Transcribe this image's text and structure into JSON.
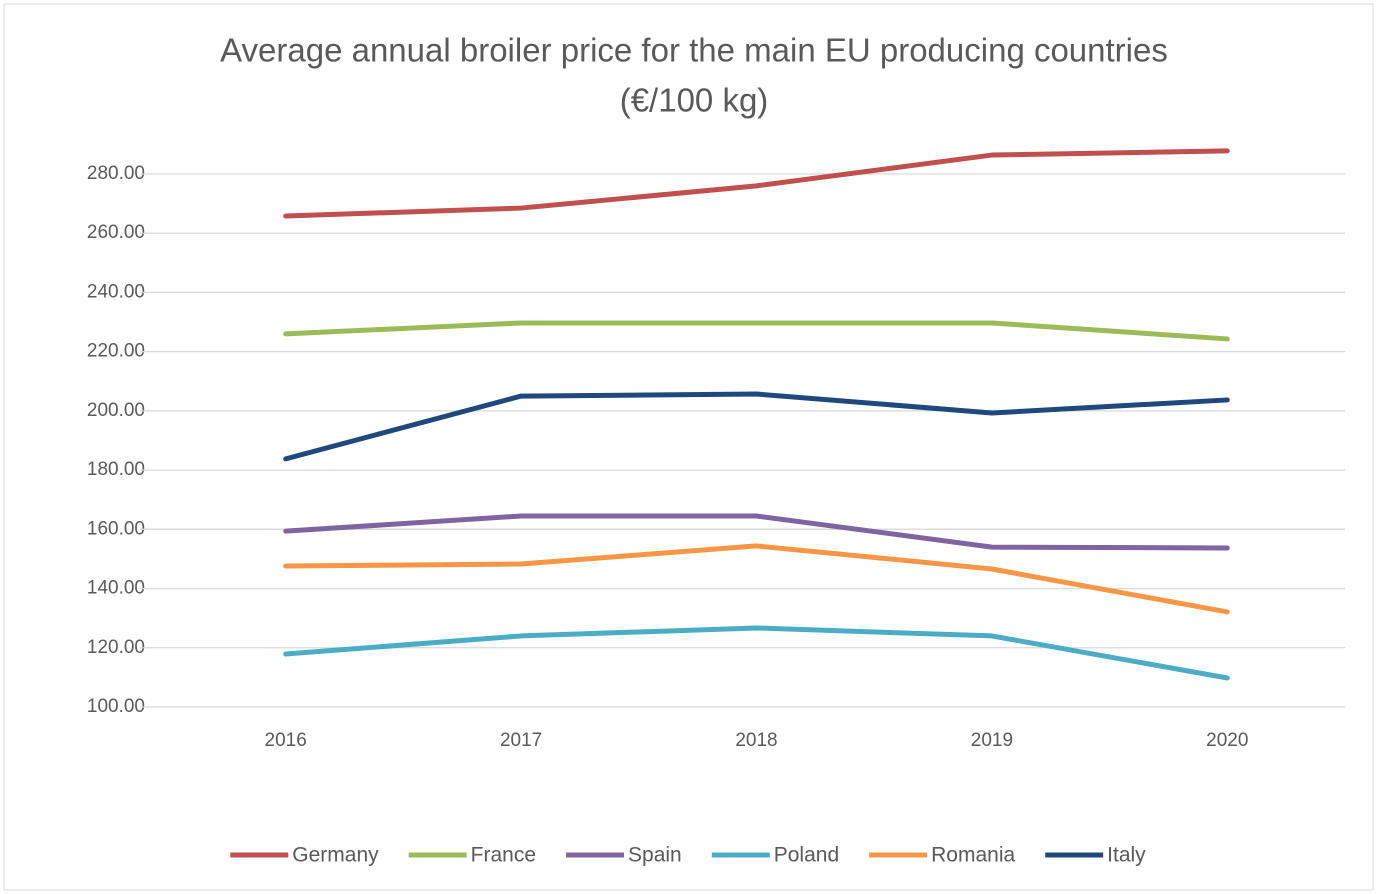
{
  "chart_data": {
    "type": "line",
    "title": "Average annual broiler price for the main EU producing countries",
    "subtitle": "(€/100 kg)",
    "categories": [
      "2016",
      "2017",
      "2018",
      "2019",
      "2020"
    ],
    "series": [
      {
        "name": "Germany",
        "color": "#c0504d",
        "values": [
          265.8,
          268.5,
          276,
          286.4,
          287.8
        ]
      },
      {
        "name": "France",
        "color": "#9bbb59",
        "values": [
          226,
          229.7,
          229.7,
          229.7,
          224.3
        ]
      },
      {
        "name": "Spain",
        "color": "#8064a2",
        "values": [
          159.4,
          164.5,
          164.5,
          154,
          153.7
        ]
      },
      {
        "name": "Poland",
        "color": "#4bacc6",
        "values": [
          117.9,
          124,
          126.7,
          124,
          109.8
        ]
      },
      {
        "name": "Romania",
        "color": "#f79646",
        "values": [
          147.6,
          148.3,
          154.4,
          146.6,
          132.1
        ]
      },
      {
        "name": "Italy",
        "color": "#1f497d",
        "values": [
          183.8,
          205,
          205.7,
          199.3,
          203.7
        ]
      }
    ],
    "ylim": [
      100,
      290
    ],
    "yticks": [
      {
        "value": 100,
        "label": "100.00"
      },
      {
        "value": 120,
        "label": "120.00"
      },
      {
        "value": 140,
        "label": "140.00"
      },
      {
        "value": 160,
        "label": "160.00"
      },
      {
        "value": 180,
        "label": "180.00"
      },
      {
        "value": 200,
        "label": "200.00"
      },
      {
        "value": 220,
        "label": "220.00"
      },
      {
        "value": 240,
        "label": "240.00"
      },
      {
        "value": 260,
        "label": "260.00"
      },
      {
        "value": 280,
        "label": "280.00"
      }
    ],
    "grid": true,
    "legend": "bottom"
  }
}
